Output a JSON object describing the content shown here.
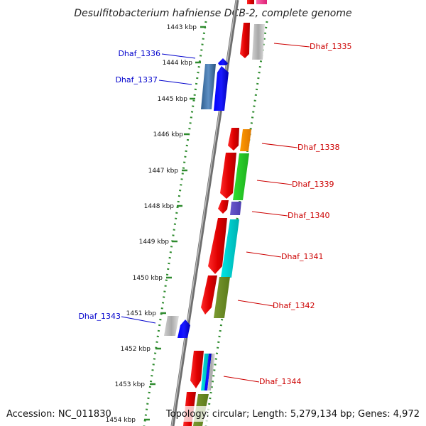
{
  "title": "Desulfitobacterium hafniense DCB-2, complete genome",
  "accession_text": "Accession: NC_011830",
  "summary_text": "Topology: circular; Length: 5,279,134 bp; Genes: 4,972",
  "colors": {
    "backbone": "#8a8a8a",
    "track": "#2e8b2e",
    "label_forward": "#cc0000",
    "label_reverse": "#0000cc"
  },
  "ticks": [
    {
      "label": "1443 kbp"
    },
    {
      "label": "1444 kbp"
    },
    {
      "label": "1445 kbp"
    },
    {
      "label": "1446 kbp"
    },
    {
      "label": "1447 kbp"
    },
    {
      "label": "1448 kbp"
    },
    {
      "label": "1449 kbp"
    },
    {
      "label": "1450 kbp"
    },
    {
      "label": "1451 kbp"
    },
    {
      "label": "1452 kbp"
    },
    {
      "label": "1453 kbp"
    },
    {
      "label": "1454 kbp"
    }
  ],
  "genes": [
    {
      "label": "Dhaf_1335",
      "strand": "forward"
    },
    {
      "label": "Dhaf_1336",
      "strand": "reverse"
    },
    {
      "label": "Dhaf_1337",
      "strand": "reverse"
    },
    {
      "label": "Dhaf_1338",
      "strand": "forward"
    },
    {
      "label": "Dhaf_1339",
      "strand": "forward"
    },
    {
      "label": "Dhaf_1340",
      "strand": "forward"
    },
    {
      "label": "Dhaf_1341",
      "strand": "forward"
    },
    {
      "label": "Dhaf_1342",
      "strand": "forward"
    },
    {
      "label": "Dhaf_1343",
      "strand": "reverse"
    },
    {
      "label": "Dhaf_1344",
      "strand": "forward"
    }
  ]
}
